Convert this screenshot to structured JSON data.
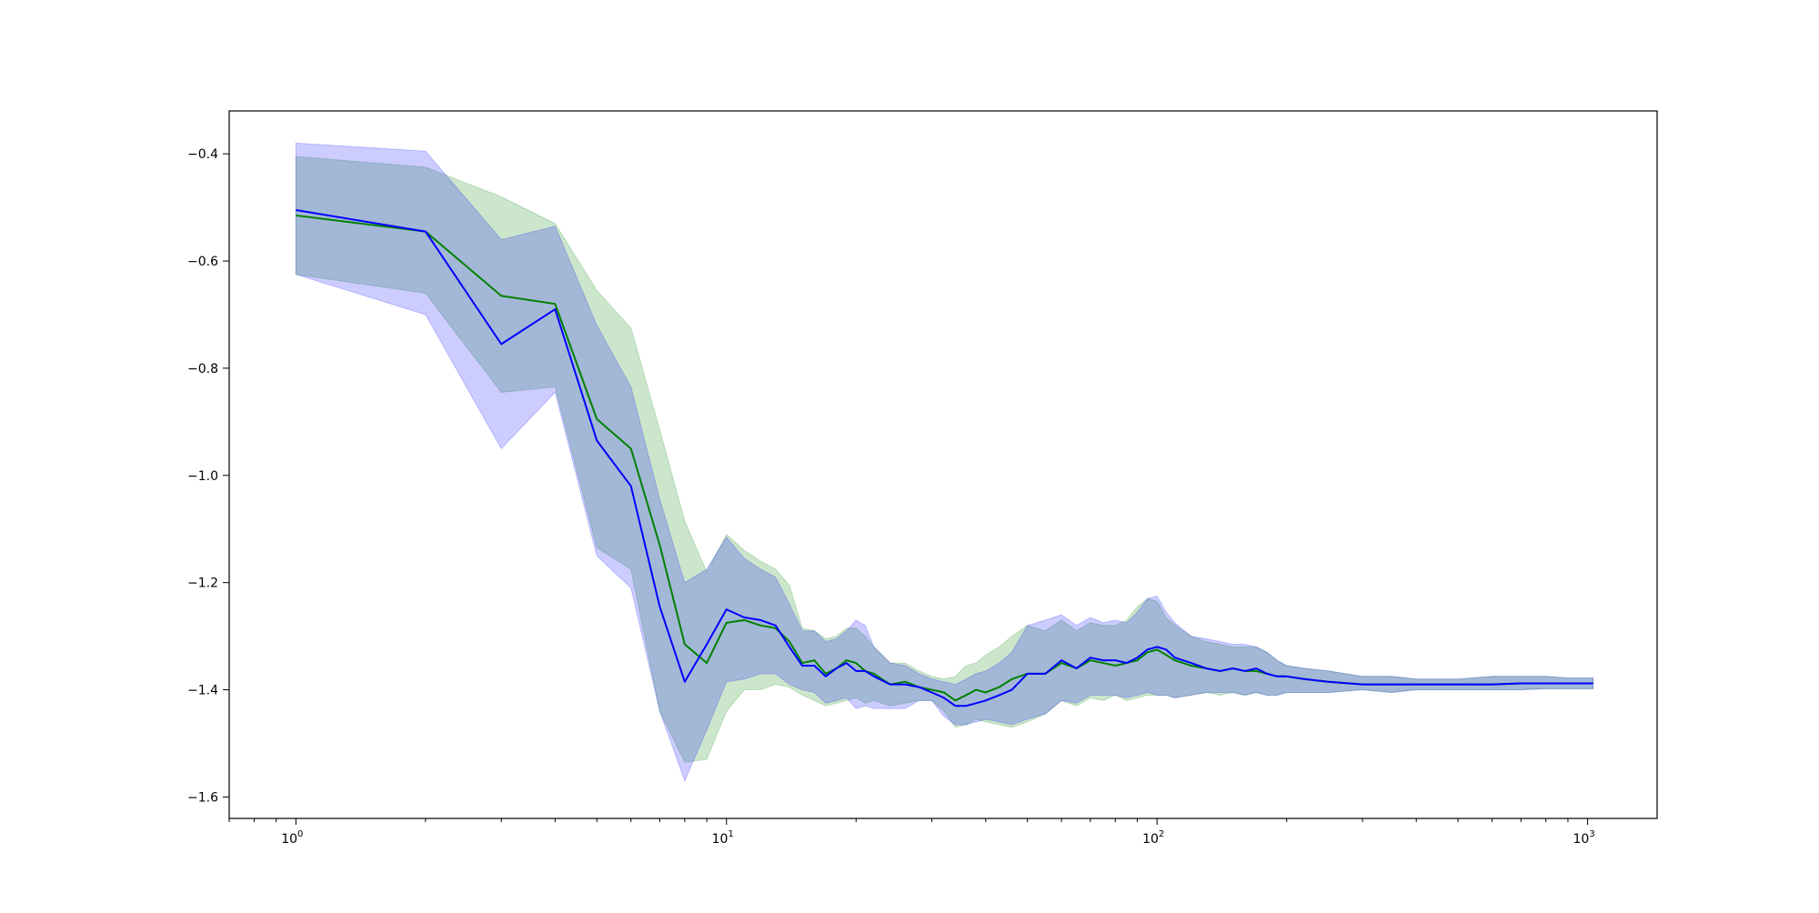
{
  "chart_data": {
    "type": "line",
    "title": "",
    "xlabel": "",
    "ylabel": "",
    "xscale": "log",
    "xlim": [
      0.7,
      1450
    ],
    "ylim": [
      -1.64,
      -0.32
    ],
    "grid": false,
    "legend": "none",
    "x_ticks": [
      {
        "base": "10",
        "exp": "0",
        "value": 1
      },
      {
        "base": "10",
        "exp": "1",
        "value": 10
      },
      {
        "base": "10",
        "exp": "2",
        "value": 100
      },
      {
        "base": "10",
        "exp": "3",
        "value": 1000
      }
    ],
    "y_ticks": [
      {
        "label": "−0.4",
        "value": -0.4
      },
      {
        "label": "−0.6",
        "value": -0.6
      },
      {
        "label": "−0.8",
        "value": -0.8
      },
      {
        "label": "−1.0",
        "value": -1.0
      },
      {
        "label": "−1.2",
        "value": -1.2
      },
      {
        "label": "−1.4",
        "value": -1.4
      },
      {
        "label": "−1.6",
        "value": -1.6
      }
    ],
    "series": [
      {
        "color": "#008000",
        "band_color": "#008000",
        "band_opacity": 0.2,
        "x": [
          1,
          2,
          3,
          4,
          5,
          6,
          7,
          8,
          9,
          10,
          11,
          12,
          13,
          14,
          15,
          16,
          17,
          18,
          19,
          20,
          21,
          22,
          24,
          26,
          28,
          30,
          32,
          34,
          36,
          38,
          40,
          43,
          46,
          50,
          55,
          60,
          65,
          70,
          75,
          80,
          85,
          90,
          95,
          100,
          105,
          110,
          120,
          130,
          140,
          150,
          160,
          170,
          180,
          190,
          200,
          220,
          250,
          300,
          350,
          400,
          450,
          500,
          600,
          700,
          800,
          900,
          1000,
          1030
        ],
        "y": [
          -0.515,
          -0.545,
          -0.665,
          -0.68,
          -0.895,
          -0.95,
          -1.13,
          -1.315,
          -1.35,
          -1.275,
          -1.27,
          -1.28,
          -1.285,
          -1.31,
          -1.35,
          -1.345,
          -1.37,
          -1.36,
          -1.345,
          -1.35,
          -1.365,
          -1.37,
          -1.39,
          -1.385,
          -1.395,
          -1.4,
          -1.405,
          -1.42,
          -1.41,
          -1.4,
          -1.405,
          -1.395,
          -1.38,
          -1.37,
          -1.37,
          -1.35,
          -1.36,
          -1.345,
          -1.35,
          -1.355,
          -1.35,
          -1.345,
          -1.33,
          -1.325,
          -1.335,
          -1.345,
          -1.355,
          -1.36,
          -1.365,
          -1.36,
          -1.365,
          -1.365,
          -1.37,
          -1.375,
          -1.375,
          -1.38,
          -1.385,
          -1.39,
          -1.39,
          -1.39,
          -1.39,
          -1.39,
          -1.39,
          -1.388,
          -1.388,
          -1.388,
          -1.388,
          -1.388
        ],
        "lower": [
          -0.625,
          -0.66,
          -0.845,
          -0.835,
          -1.135,
          -1.175,
          -1.44,
          -1.535,
          -1.53,
          -1.44,
          -1.4,
          -1.4,
          -1.39,
          -1.395,
          -1.41,
          -1.42,
          -1.43,
          -1.425,
          -1.42,
          -1.415,
          -1.425,
          -1.42,
          -1.43,
          -1.425,
          -1.42,
          -1.42,
          -1.44,
          -1.47,
          -1.465,
          -1.455,
          -1.46,
          -1.465,
          -1.47,
          -1.46,
          -1.445,
          -1.42,
          -1.43,
          -1.415,
          -1.42,
          -1.41,
          -1.42,
          -1.415,
          -1.41,
          -1.41,
          -1.41,
          -1.415,
          -1.41,
          -1.405,
          -1.41,
          -1.405,
          -1.41,
          -1.405,
          -1.41,
          -1.41,
          -1.405,
          -1.405,
          -1.405,
          -1.4,
          -1.405,
          -1.4,
          -1.4,
          -1.4,
          -1.4,
          -1.4,
          -1.398,
          -1.398,
          -1.398,
          -1.398
        ],
        "upper": [
          -0.405,
          -0.425,
          -0.48,
          -0.53,
          -0.655,
          -0.725,
          -0.915,
          -1.085,
          -1.18,
          -1.11,
          -1.14,
          -1.16,
          -1.175,
          -1.205,
          -1.285,
          -1.29,
          -1.305,
          -1.3,
          -1.285,
          -1.285,
          -1.3,
          -1.32,
          -1.35,
          -1.35,
          -1.365,
          -1.375,
          -1.38,
          -1.375,
          -1.355,
          -1.35,
          -1.335,
          -1.32,
          -1.3,
          -1.28,
          -1.29,
          -1.27,
          -1.29,
          -1.275,
          -1.28,
          -1.28,
          -1.27,
          -1.245,
          -1.23,
          -1.235,
          -1.265,
          -1.28,
          -1.3,
          -1.31,
          -1.315,
          -1.32,
          -1.32,
          -1.32,
          -1.33,
          -1.345,
          -1.355,
          -1.36,
          -1.365,
          -1.375,
          -1.375,
          -1.38,
          -1.38,
          -1.38,
          -1.375,
          -1.375,
          -1.375,
          -1.378,
          -1.378,
          -1.378
        ]
      },
      {
        "color": "#0000ff",
        "band_color": "#0000ff",
        "band_opacity": 0.2,
        "x": [
          1,
          2,
          3,
          4,
          5,
          6,
          7,
          8,
          9,
          10,
          11,
          12,
          13,
          14,
          15,
          16,
          17,
          18,
          19,
          20,
          21,
          22,
          24,
          26,
          28,
          30,
          32,
          34,
          36,
          38,
          40,
          43,
          46,
          50,
          55,
          60,
          65,
          70,
          75,
          80,
          85,
          90,
          95,
          100,
          105,
          110,
          120,
          130,
          140,
          150,
          160,
          170,
          180,
          190,
          200,
          220,
          250,
          300,
          350,
          400,
          450,
          500,
          600,
          700,
          800,
          900,
          1000,
          1030
        ],
        "y": [
          -0.505,
          -0.545,
          -0.755,
          -0.69,
          -0.935,
          -1.02,
          -1.245,
          -1.385,
          -1.315,
          -1.25,
          -1.265,
          -1.27,
          -1.28,
          -1.32,
          -1.355,
          -1.355,
          -1.375,
          -1.36,
          -1.35,
          -1.365,
          -1.365,
          -1.375,
          -1.39,
          -1.39,
          -1.395,
          -1.405,
          -1.415,
          -1.43,
          -1.43,
          -1.425,
          -1.42,
          -1.41,
          -1.4,
          -1.37,
          -1.37,
          -1.345,
          -1.36,
          -1.34,
          -1.345,
          -1.345,
          -1.35,
          -1.34,
          -1.325,
          -1.32,
          -1.325,
          -1.34,
          -1.35,
          -1.36,
          -1.365,
          -1.36,
          -1.365,
          -1.36,
          -1.37,
          -1.375,
          -1.375,
          -1.38,
          -1.385,
          -1.39,
          -1.39,
          -1.39,
          -1.39,
          -1.39,
          -1.39,
          -1.388,
          -1.388,
          -1.388,
          -1.388,
          -1.388
        ],
        "lower": [
          -0.625,
          -0.7,
          -0.95,
          -0.845,
          -1.15,
          -1.21,
          -1.44,
          -1.57,
          -1.475,
          -1.385,
          -1.38,
          -1.37,
          -1.37,
          -1.39,
          -1.4,
          -1.405,
          -1.425,
          -1.42,
          -1.415,
          -1.435,
          -1.43,
          -1.435,
          -1.435,
          -1.435,
          -1.42,
          -1.42,
          -1.45,
          -1.465,
          -1.465,
          -1.46,
          -1.455,
          -1.46,
          -1.465,
          -1.455,
          -1.445,
          -1.42,
          -1.425,
          -1.41,
          -1.41,
          -1.41,
          -1.415,
          -1.41,
          -1.405,
          -1.41,
          -1.41,
          -1.415,
          -1.41,
          -1.405,
          -1.405,
          -1.405,
          -1.41,
          -1.405,
          -1.41,
          -1.41,
          -1.405,
          -1.405,
          -1.405,
          -1.4,
          -1.405,
          -1.4,
          -1.4,
          -1.4,
          -1.4,
          -1.4,
          -1.398,
          -1.398,
          -1.398,
          -1.398
        ],
        "upper": [
          -0.38,
          -0.395,
          -0.56,
          -0.535,
          -0.72,
          -0.835,
          -1.045,
          -1.2,
          -1.175,
          -1.115,
          -1.155,
          -1.175,
          -1.19,
          -1.24,
          -1.29,
          -1.29,
          -1.31,
          -1.305,
          -1.29,
          -1.27,
          -1.28,
          -1.32,
          -1.35,
          -1.355,
          -1.37,
          -1.38,
          -1.385,
          -1.39,
          -1.38,
          -1.37,
          -1.365,
          -1.35,
          -1.33,
          -1.28,
          -1.27,
          -1.26,
          -1.28,
          -1.265,
          -1.275,
          -1.27,
          -1.275,
          -1.255,
          -1.23,
          -1.225,
          -1.255,
          -1.275,
          -1.3,
          -1.305,
          -1.31,
          -1.315,
          -1.315,
          -1.32,
          -1.33,
          -1.345,
          -1.355,
          -1.36,
          -1.365,
          -1.375,
          -1.375,
          -1.38,
          -1.38,
          -1.38,
          -1.375,
          -1.375,
          -1.375,
          -1.378,
          -1.378,
          -1.378
        ]
      }
    ]
  }
}
